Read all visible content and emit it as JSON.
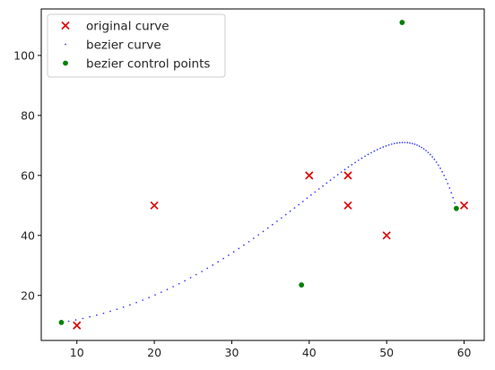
{
  "chart_data": {
    "type": "scatter",
    "title": "",
    "xlabel": "",
    "ylabel": "",
    "xlim": [
      5.4,
      62.6
    ],
    "ylim": [
      5.0,
      115.5
    ],
    "xticks": [
      10,
      20,
      30,
      40,
      50,
      60
    ],
    "yticks": [
      20,
      40,
      60,
      80,
      100
    ],
    "legend_position": "top-left",
    "grid": false,
    "series": [
      {
        "name": "original curve",
        "marker": "x",
        "color": "#e00000",
        "points": [
          [
            10,
            10
          ],
          [
            20,
            50
          ],
          [
            40,
            60
          ],
          [
            45,
            60
          ],
          [
            45,
            50
          ],
          [
            50,
            40
          ],
          [
            60,
            50
          ]
        ]
      },
      {
        "name": "bezier curve",
        "marker": "dot",
        "color": "#3333ff",
        "kind": "bezier",
        "samples": 100
      },
      {
        "name": "bezier control points",
        "marker": "circle",
        "color": "#008000",
        "points": [
          [
            8,
            11
          ],
          [
            39,
            23.5
          ],
          [
            52,
            111
          ],
          [
            59,
            49
          ]
        ]
      }
    ]
  }
}
